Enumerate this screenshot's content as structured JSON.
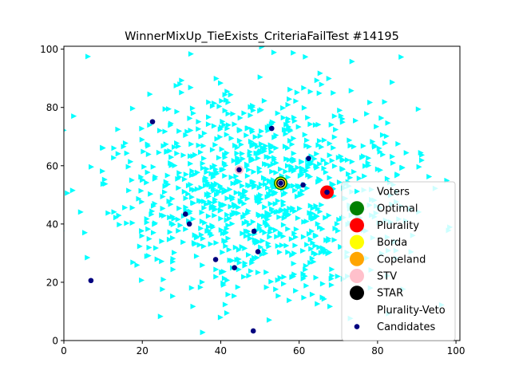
{
  "chart_data": {
    "type": "scatter",
    "title": "WinnerMixUp_TieExists_CriteriaFailTest #14195",
    "xlabel": "",
    "ylabel": "",
    "xlim": [
      0,
      101
    ],
    "ylim": [
      0,
      101
    ],
    "xticks": [
      0,
      20,
      40,
      60,
      80,
      100
    ],
    "yticks": [
      0,
      20,
      40,
      60,
      80,
      100
    ],
    "grid": false,
    "legend_position": "lower-right",
    "voters": {
      "name": "Voters",
      "color": "#00ffff",
      "marker": "triangle-right",
      "count": 1000,
      "distribution": {
        "center": [
          50,
          50
        ],
        "std": [
          19,
          18
        ]
      }
    },
    "candidates": {
      "name": "Candidates",
      "color": "#00007f",
      "points": [
        [
          22.6,
          75.1
        ],
        [
          53.0,
          72.8
        ],
        [
          62.4,
          62.5
        ],
        [
          44.7,
          58.6
        ],
        [
          55.3,
          54.0
        ],
        [
          61.0,
          53.4
        ],
        [
          67.1,
          50.9
        ],
        [
          31.0,
          43.4
        ],
        [
          32.0,
          40.0
        ],
        [
          48.5,
          37.5
        ],
        [
          49.5,
          30.5
        ],
        [
          38.7,
          27.8
        ],
        [
          43.5,
          25.0
        ],
        [
          6.9,
          20.6
        ],
        [
          48.3,
          3.3
        ]
      ]
    },
    "winners": [
      {
        "name": "Optimal",
        "color": "#008000",
        "point": [
          55.3,
          54.0
        ],
        "size": 16
      },
      {
        "name": "Plurality",
        "color": "#ff0000",
        "point": [
          67.1,
          50.9
        ],
        "size": 16
      },
      {
        "name": "Borda",
        "color": "#ffff00",
        "point": [
          55.3,
          54.0
        ],
        "size": 13
      },
      {
        "name": "Copeland",
        "color": "#ffa500",
        "point": [
          55.3,
          54.0
        ],
        "size": 11
      },
      {
        "name": "STV",
        "color": "#ffc0cb",
        "point": [
          44.7,
          58.6
        ],
        "size": 10
      },
      {
        "name": "STAR",
        "color": "#000000",
        "point": [
          55.3,
          54.0
        ],
        "size": 10
      },
      {
        "name": "Plurality-Veto",
        "color": "#ffffff",
        "point": [
          55.3,
          54.0
        ],
        "size": 7
      }
    ]
  }
}
